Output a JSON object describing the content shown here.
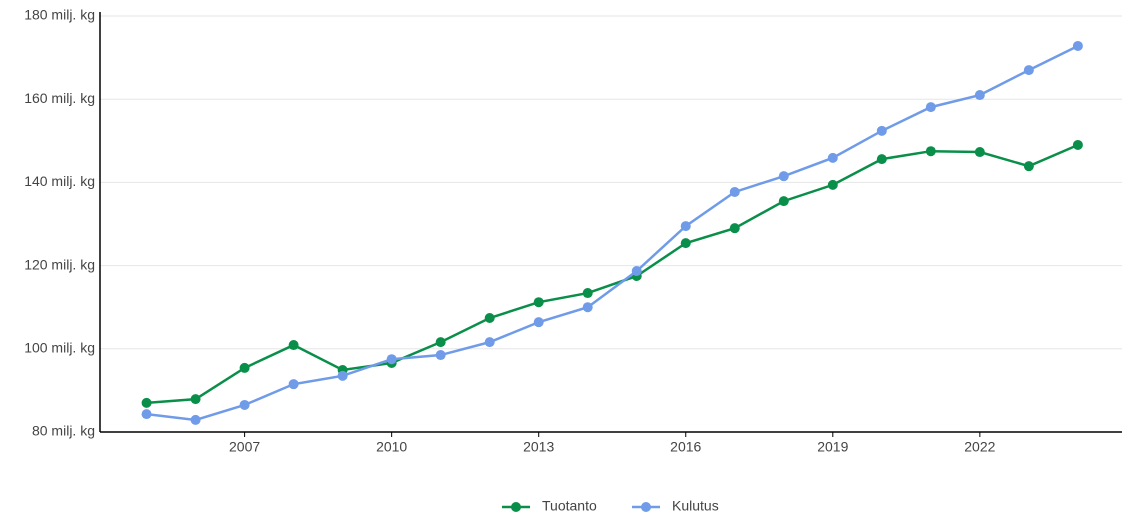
{
  "chart_data": {
    "type": "line",
    "x": [
      2005,
      2006,
      2007,
      2008,
      2009,
      2010,
      2011,
      2012,
      2013,
      2014,
      2015,
      2016,
      2017,
      2018,
      2019,
      2020,
      2021,
      2022,
      2023,
      2024
    ],
    "series": [
      {
        "name": "Tuotanto",
        "color": "#0a8f4a",
        "values": [
          87.0,
          87.9,
          95.4,
          100.9,
          94.9,
          96.6,
          101.6,
          107.4,
          111.2,
          113.4,
          117.5,
          125.4,
          129.0,
          135.5,
          139.4,
          145.6,
          147.5,
          147.3,
          143.9,
          149.0
        ]
      },
      {
        "name": "Kulutus",
        "color": "#6f9be8",
        "values": [
          84.3,
          82.9,
          86.5,
          91.5,
          93.5,
          97.5,
          98.5,
          101.6,
          106.4,
          110.0,
          118.7,
          129.5,
          137.7,
          141.5,
          145.9,
          152.4,
          158.1,
          161.0,
          167.0,
          172.8
        ]
      }
    ],
    "xlim": [
      2004.05,
      2024.9
    ],
    "xticks": [
      2007,
      2010,
      2013,
      2016,
      2019,
      2022
    ],
    "ylim": [
      80,
      180
    ],
    "yticks": [
      {
        "value": 80,
        "label": "80 milj. kg"
      },
      {
        "value": 100,
        "label": "100 milj. kg"
      },
      {
        "value": 120,
        "label": "120 milj. kg"
      },
      {
        "value": 140,
        "label": "140 milj. kg"
      },
      {
        "value": 160,
        "label": "160 milj. kg"
      },
      {
        "value": 180,
        "label": "180 milj. kg"
      }
    ],
    "grid": true,
    "legend": "bottom"
  }
}
